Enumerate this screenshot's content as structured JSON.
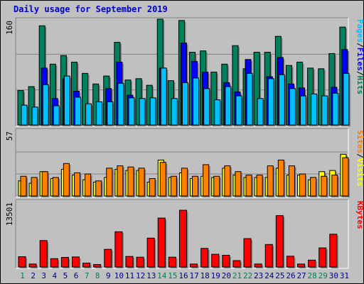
{
  "chart_data": {
    "type": "bar",
    "title": "Daily usage for September 2019",
    "days": [
      "1",
      "2",
      "3",
      "4",
      "5",
      "6",
      "7",
      "8",
      "9",
      "10",
      "11",
      "12",
      "13",
      "14",
      "15",
      "16",
      "17",
      "18",
      "19",
      "20",
      "21",
      "22",
      "23",
      "24",
      "25",
      "26",
      "27",
      "28",
      "29",
      "30",
      "31"
    ],
    "weekend_days": [
      "1",
      "7",
      "8",
      "14",
      "15",
      "21",
      "22",
      "28",
      "29"
    ],
    "colors": {
      "hits": "#00805c",
      "files": "#0000ff",
      "pages": "#00c0ff",
      "visits": "#ffff00",
      "sites": "#ff8000",
      "kbytes": "#ff0000",
      "weekend_label": "#00805c",
      "weekday_label": "#000080",
      "title": "#0000cc",
      "background": "#c0c0c0"
    },
    "panels": [
      {
        "id": "hits_files_pages",
        "ymax": 160,
        "ymax_label": "160",
        "side_labels": [
          {
            "text": "Pages",
            "color": "#00c0ff"
          },
          {
            "text": "/",
            "color": "#000000"
          },
          {
            "text": "Files",
            "color": "#0000ff"
          },
          {
            "text": "/",
            "color": "#000000"
          },
          {
            "text": "Hits",
            "color": "#00805c"
          }
        ],
        "gridlines": [
          53,
          107
        ],
        "series": [
          {
            "name": "Hits",
            "color": "#00805c",
            "values": [
              52,
              58,
              150,
              92,
              105,
              95,
              78,
              62,
              74,
              125,
              68,
              70,
              60,
              160,
              67,
              158,
              110,
              112,
              80,
              92,
              120,
              85,
              110,
              110,
              134,
              90,
              95,
              86,
              85,
              108,
              148
            ]
          },
          {
            "name": "Files",
            "color": "#0000ff",
            "values": [
              0,
              0,
              86,
              40,
              70,
              51,
              0,
              0,
              55,
              95,
              45,
              0,
              0,
              86,
              0,
              124,
              96,
              80,
              0,
              64,
              50,
              99,
              0,
              73,
              102,
              62,
              56,
              0,
              0,
              57,
              114
            ]
          },
          {
            "name": "Pages",
            "color": "#00c0ff",
            "values": [
              30,
              27,
              61,
              29,
              74,
              42,
              32,
              35,
              35,
              63,
              41,
              40,
              41,
              86,
              40,
              64,
              71,
              55,
              38,
              58,
              44,
              78,
              40,
              70,
              76,
              55,
              44,
              47,
              44,
              48,
              78
            ]
          }
        ]
      },
      {
        "id": "visits_sites",
        "ymax": 57,
        "ymax_label": "57",
        "side_labels": [
          {
            "text": "Sites",
            "color": "#ff8000"
          },
          {
            "text": "/",
            "color": "#000000"
          },
          {
            "text": "Visits",
            "color": "#ffff00"
          }
        ],
        "gridlines": [
          19,
          38
        ],
        "series": [
          {
            "name": "Visits",
            "color": "#ffff00",
            "values": [
              13,
              11,
              21,
              15,
              23,
              18,
              14,
              12,
              16,
              23,
              22,
              22,
              12,
              31,
              16,
              20,
              15,
              17,
              16,
              24,
              18,
              16,
              16,
              16,
              24,
              18,
              18,
              14,
              21,
              22,
              36
            ]
          },
          {
            "name": "Sites",
            "color": "#ff8000",
            "values": [
              17,
              16,
              21,
              16,
              28,
              20,
              19,
              13,
              24,
              26,
              25,
              24,
              15,
              29,
              17,
              24,
              17,
              27,
              17,
              26,
              21,
              18,
              18,
              26,
              31,
              26,
              19,
              16,
              17,
              18,
              33
            ]
          }
        ]
      },
      {
        "id": "kbytes",
        "ymax": 13501,
        "ymax_label": "13501",
        "side_labels": [
          {
            "text": "KBytes",
            "color": "#ff0000"
          }
        ],
        "gridlines": [],
        "series": [
          {
            "name": "KBytes",
            "color": "#ff0000",
            "values": [
              2100,
              600,
              5400,
              1700,
              1950,
              2050,
              800,
              500,
              3600,
              7200,
              2150,
              2000,
              5900,
              10000,
              2000,
              11600,
              600,
              3800,
              2600,
              2400,
              1300,
              5800,
              600,
              4600,
              10500,
              2200,
              600,
              1400,
              3900,
              6700,
              0
            ]
          }
        ]
      }
    ]
  }
}
